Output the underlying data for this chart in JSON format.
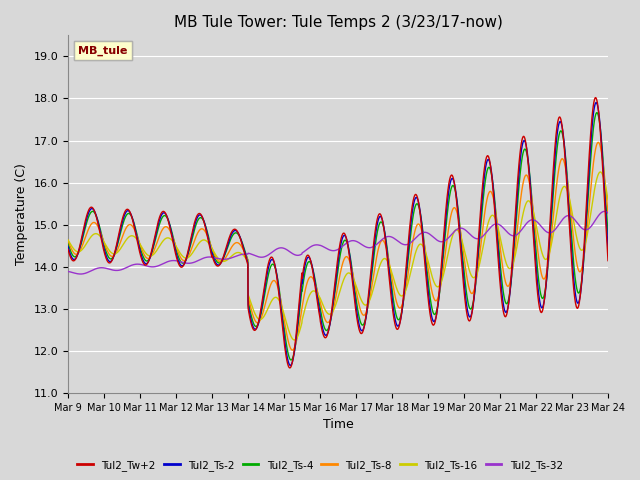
{
  "title": "MB Tule Tower: Tule Temps 2 (3/23/17-now)",
  "xlabel": "Time",
  "ylabel": "Temperature (C)",
  "ylim": [
    11.0,
    19.5
  ],
  "yticks": [
    11.0,
    12.0,
    13.0,
    14.0,
    15.0,
    16.0,
    17.0,
    18.0,
    19.0
  ],
  "xtick_labels": [
    "Mar 9",
    "Mar 10",
    "Mar 11",
    "Mar 12",
    "Mar 13",
    "Mar 14",
    "Mar 15",
    "Mar 16",
    "Mar 17",
    "Mar 18",
    "Mar 19",
    "Mar 20",
    "Mar 21",
    "Mar 22",
    "Mar 23",
    "Mar 24"
  ],
  "legend_label": "MB_tule",
  "series_labels": [
    "Tul2_Tw+2",
    "Tul2_Ts-2",
    "Tul2_Ts-4",
    "Tul2_Ts-8",
    "Tul2_Ts-16",
    "Tul2_Ts-32"
  ],
  "series_colors": [
    "#cc0000",
    "#0000cc",
    "#00aa00",
    "#ff8800",
    "#cccc00",
    "#9933cc"
  ],
  "background_color": "#d8d8d8",
  "plot_background": "#d8d8d8",
  "grid_color": "#ffffff",
  "title_fontsize": 11,
  "axis_fontsize": 9,
  "tick_fontsize": 8
}
